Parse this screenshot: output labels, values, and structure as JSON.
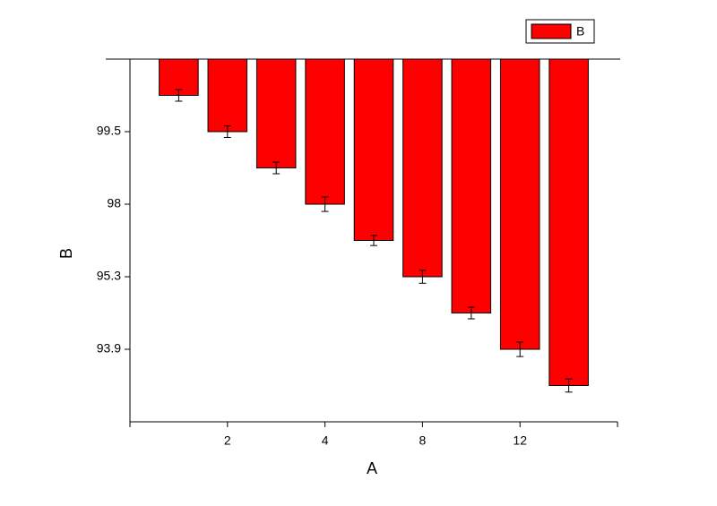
{
  "chart_data": {
    "type": "bar",
    "x_label": "A",
    "y_label": "B",
    "categories": [
      null,
      "2",
      null,
      "4",
      null,
      "8",
      null,
      "12",
      null
    ],
    "series": [
      {
        "name": "B",
        "color": "#ff0000",
        "values": [
          4.5,
          4.0,
          3.5,
          3.0,
          2.5,
          2.0,
          1.5,
          1.0,
          0.5
        ],
        "errors": [
          0.08,
          0.08,
          0.08,
          0.1,
          0.07,
          0.09,
          0.08,
          0.1,
          0.09
        ]
      }
    ],
    "ylim": [
      0,
      5
    ],
    "yticks": [
      {
        "value": 4,
        "label": "99.5"
      },
      {
        "value": 3,
        "label": "98"
      },
      {
        "value": 2,
        "label": "95.3"
      },
      {
        "value": 1,
        "label": "93.9"
      }
    ],
    "legend": "top-right"
  }
}
